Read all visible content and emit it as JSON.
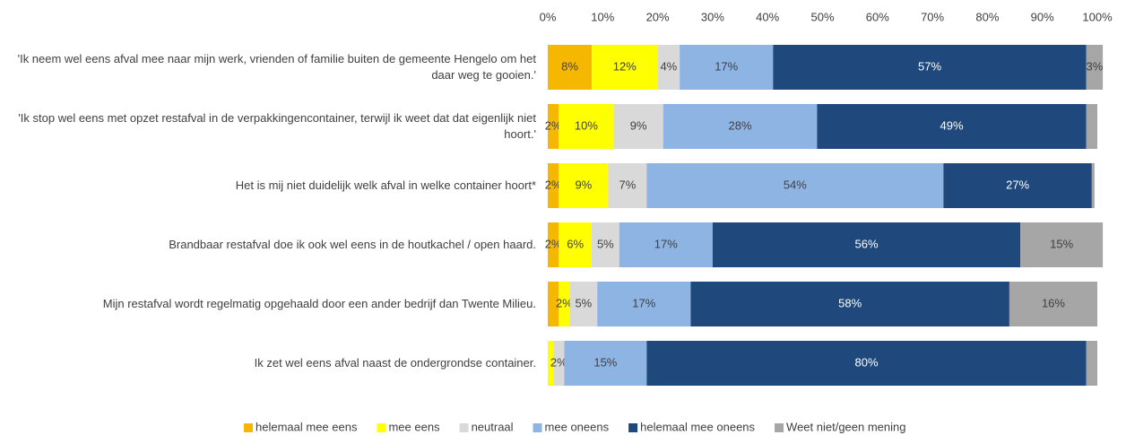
{
  "chart_data": {
    "type": "stacked-barh",
    "categories": [
      "'Ik neem wel eens afval mee naar mijn werk, vrienden of familie buiten de gemeente Hengelo om het daar weg te gooien.'",
      "'Ik stop wel eens met opzet restafval in de verpakkingencontainer, terwijl ik weet dat dat eigenlijk niet hoort.'",
      "Het is mij niet duidelijk welk afval in welke container hoort*",
      "Brandbaar restafval doe ik ook wel eens in de houtkachel / open haard.",
      "Mijn restafval wordt regelmatig opgehaald door een ander bedrijf dan Twente Milieu.",
      "Ik zet wel eens afval naast de ondergrondse container."
    ],
    "series": [
      {
        "name": "helemaal mee eens",
        "color": "#f5b700",
        "values": [
          8,
          2,
          2,
          2,
          2,
          0
        ],
        "value_labels": [
          "8%",
          "2%",
          "2%",
          "2%",
          null,
          null
        ]
      },
      {
        "name": "mee eens",
        "color": "#ffff00",
        "values": [
          12,
          10,
          9,
          6,
          2,
          1
        ],
        "value_labels": [
          "12%",
          "10%",
          "9%",
          "6%",
          "2%",
          null
        ]
      },
      {
        "name": "neutraal",
        "color": "#d9d9d9",
        "values": [
          4,
          9,
          7,
          5,
          5,
          2
        ],
        "value_labels": [
          "4%",
          "9%",
          "7%",
          "5%",
          "5%",
          "2%"
        ]
      },
      {
        "name": "mee oneens",
        "color": "#8eb4e3",
        "values": [
          17,
          28,
          54,
          17,
          17,
          15
        ],
        "value_labels": [
          "17%",
          "28%",
          "54%",
          "17%",
          "17%",
          "15%"
        ]
      },
      {
        "name": "helemaal mee oneens",
        "color": "#1f497d",
        "values": [
          57,
          49,
          27,
          56,
          58,
          80
        ],
        "value_labels": [
          "57%",
          "49%",
          "27%",
          "56%",
          "58%",
          "80%"
        ]
      },
      {
        "name": "Weet niet/geen mening",
        "color": "#a6a6a6",
        "values": [
          3,
          2,
          0.5,
          15,
          16,
          2
        ],
        "value_labels": [
          "3%",
          null,
          null,
          "15%",
          "16%",
          null
        ]
      }
    ],
    "xlim": [
      0,
      100
    ],
    "xticks": [
      {
        "value": 0,
        "label": "0%"
      },
      {
        "value": 10,
        "label": "10%"
      },
      {
        "value": 20,
        "label": "20%"
      },
      {
        "value": 30,
        "label": "30%"
      },
      {
        "value": 40,
        "label": "40%"
      },
      {
        "value": 50,
        "label": "50%"
      },
      {
        "value": 60,
        "label": "60%"
      },
      {
        "value": 70,
        "label": "70%"
      },
      {
        "value": 80,
        "label": "80%"
      },
      {
        "value": 90,
        "label": "90%"
      },
      {
        "value": 100,
        "label": "100%"
      }
    ],
    "legend": "bottom"
  }
}
